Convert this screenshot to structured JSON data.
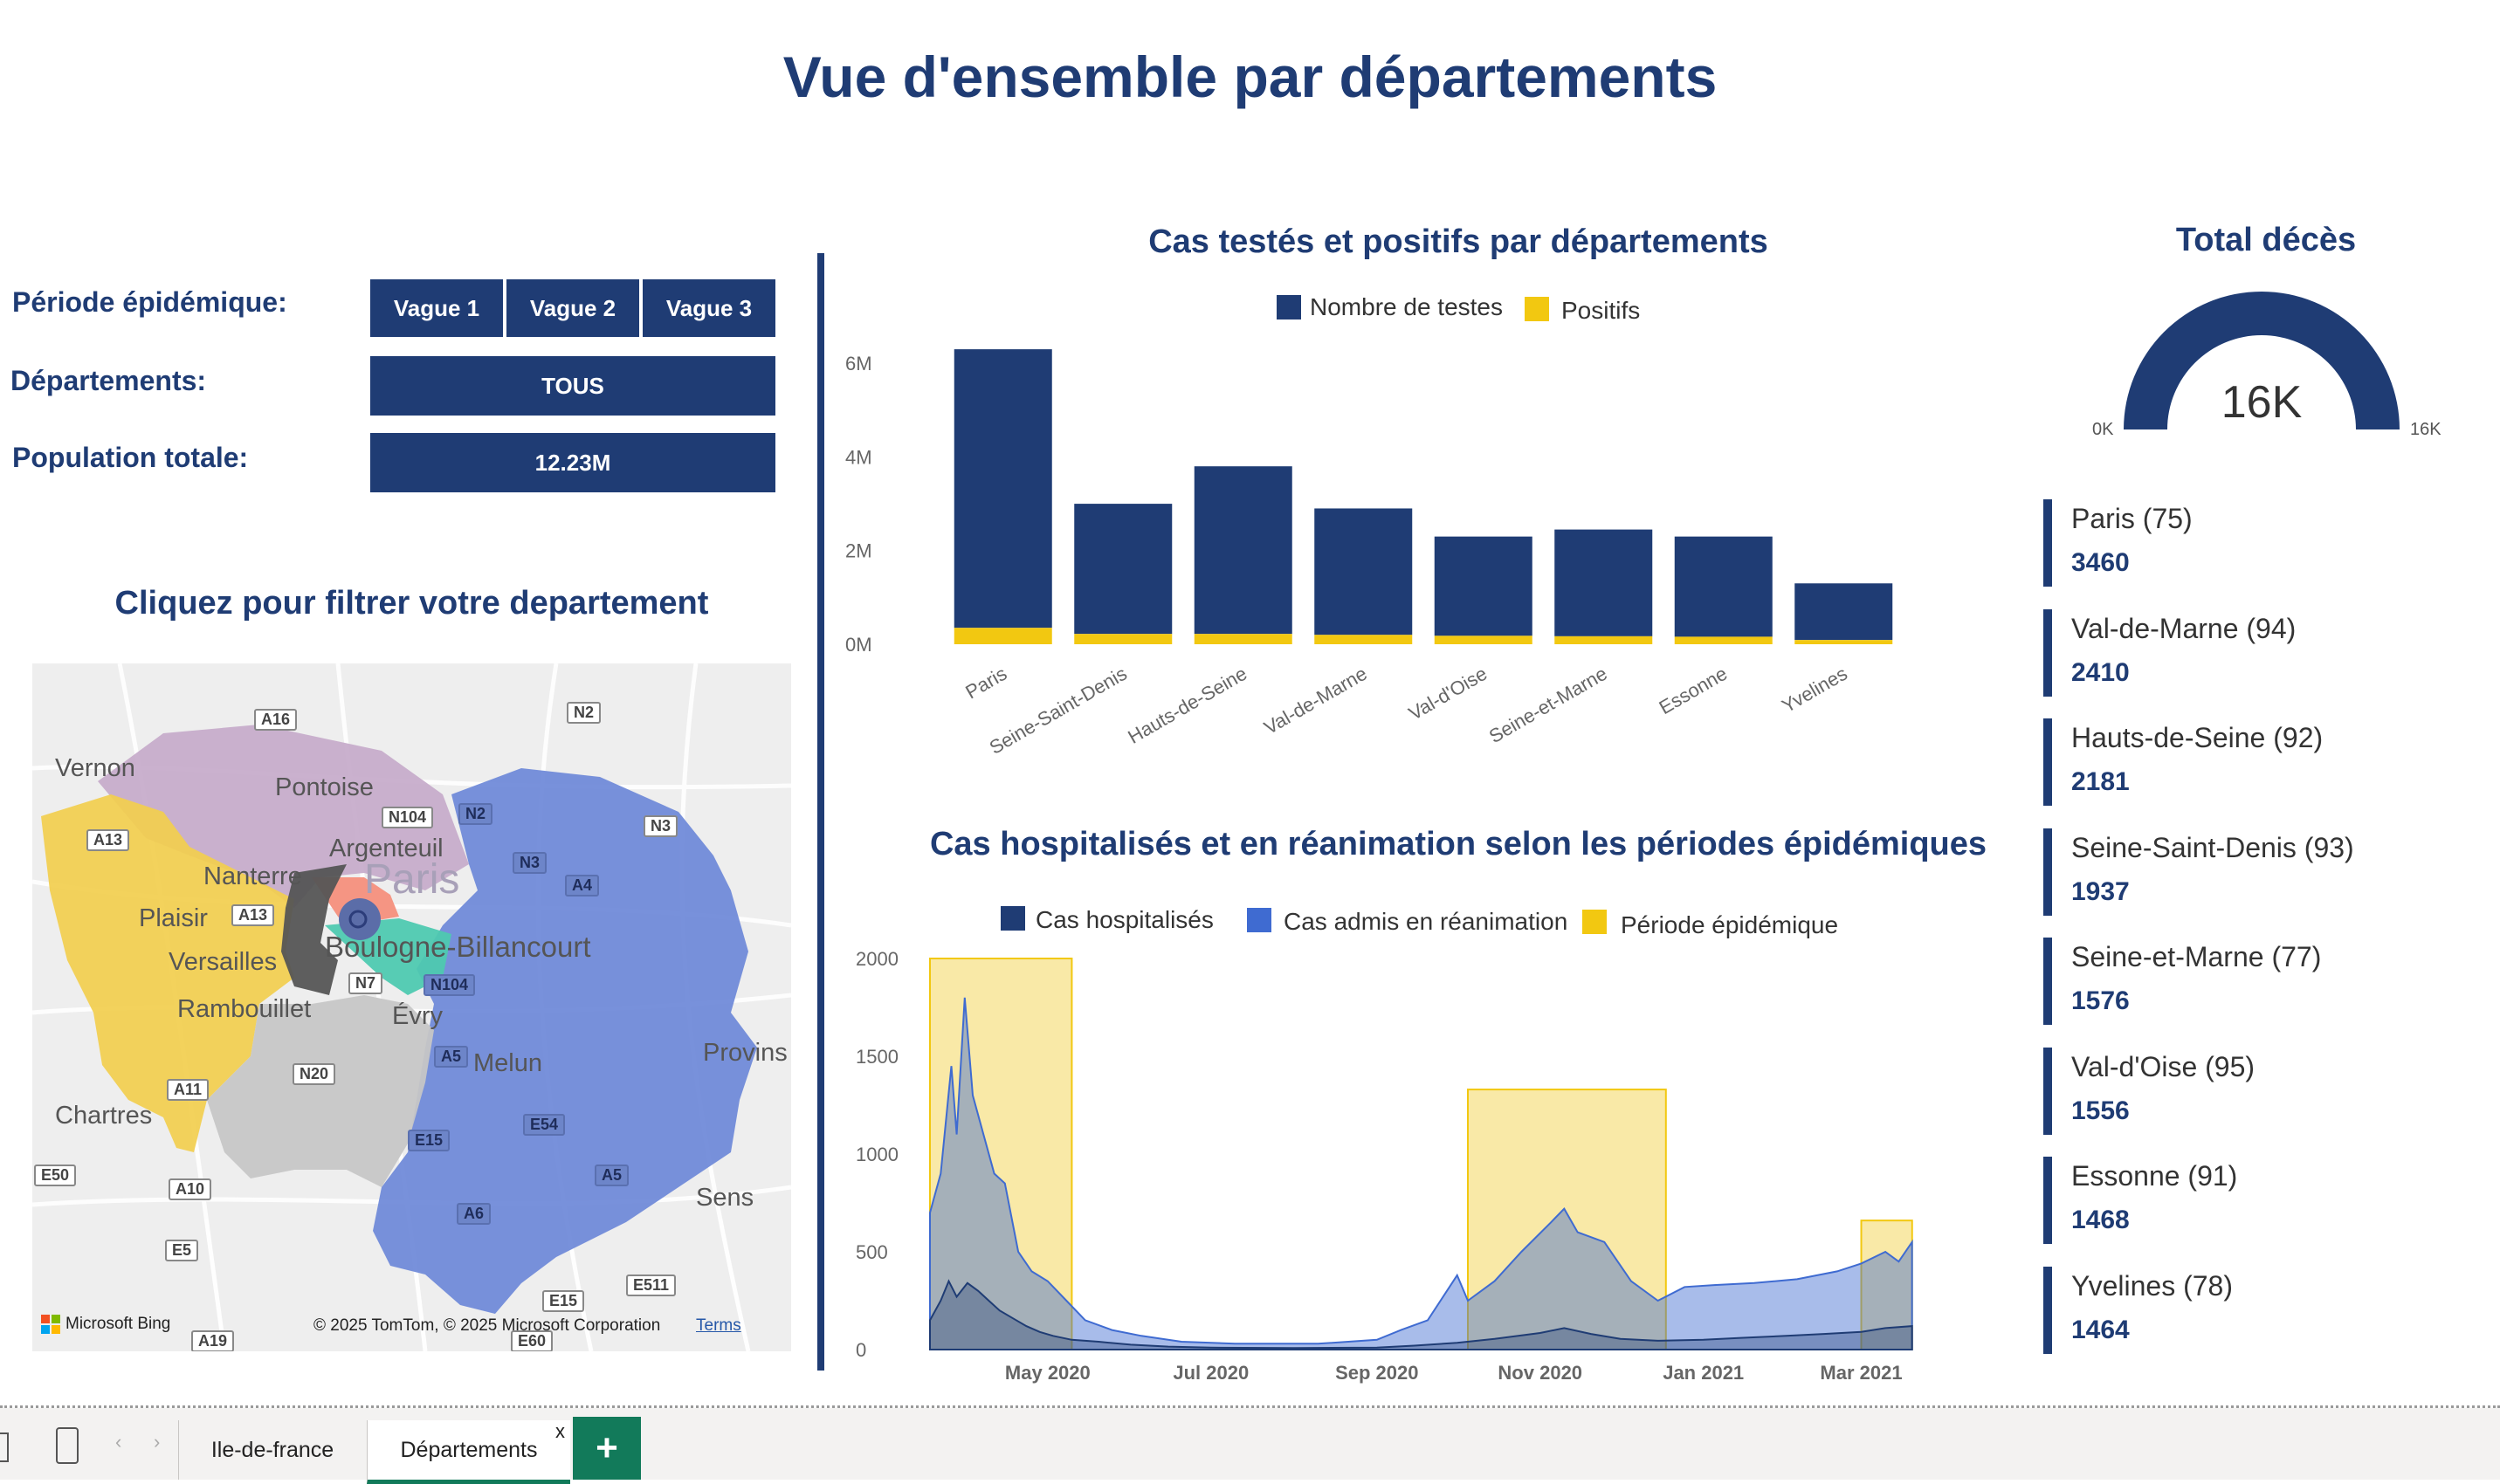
{
  "page": {
    "title": "Vue d'ensemble par départements"
  },
  "filters": {
    "period_label": "Période épidémique:",
    "departments_label": "Départements:",
    "population_label": "Population totale:",
    "waves": [
      "Vague 1",
      "Vague 2",
      "Vague 3"
    ],
    "department_value": "TOUS",
    "population_value": "12.23M"
  },
  "map": {
    "title": "Cliquez pour filtrer votre departement",
    "places": [
      "Vernon",
      "Pontoise",
      "Argenteuil",
      "Nanterre",
      "Paris",
      "Plaisir",
      "Versailles",
      "Boulogne-Billancourt",
      "Rambouillet",
      "Évry",
      "Melun",
      "Provins",
      "Chartres",
      "Sens"
    ],
    "roads": [
      "A16",
      "N2",
      "N104",
      "N2",
      "N3",
      "A13",
      "N3",
      "A4",
      "A13",
      "N7",
      "N104",
      "A5",
      "N20",
      "E54",
      "A11",
      "E15",
      "A5",
      "E50",
      "A10",
      "A6",
      "E5",
      "E511",
      "E15",
      "A19",
      "E60"
    ],
    "brand": "Microsoft Bing",
    "copyright": "© 2025 TomTom, © 2025 Microsoft Corporation",
    "terms": "Terms",
    "colors": {
      "Val-d'Oise": "#c4a9c9",
      "Yvelines": "#f2ce4e",
      "Essonne": "#c6c6c6",
      "Seine-et-Marne": "#6d88d8",
      "Hauts-de-Seine": "#555555",
      "Seine-Saint-Denis": "#f48f7c",
      "Val-de-Marne": "#4ec9b0",
      "Paris": "#5b6da8"
    }
  },
  "chart1": {
    "title": "Cas testés et positifs par départements",
    "legend": [
      "Nombre de testes",
      "Positifs"
    ]
  },
  "chart2": {
    "title": "Cas hospitalisés et en réanimation selon les périodes épidémiques",
    "legend": [
      "Cas hospitalisés",
      "Cas admis en réanimation",
      "Période épidémique"
    ]
  },
  "gauge": {
    "title": "Total décès",
    "value": "16K",
    "min": "0K",
    "max": "16K",
    "fraction": 1.0
  },
  "deaths": [
    {
      "name": "Paris (75)",
      "value": "3460"
    },
    {
      "name": "Val-de-Marne (94)",
      "value": "2410"
    },
    {
      "name": "Hauts-de-Seine (92)",
      "value": "2181"
    },
    {
      "name": "Seine-Saint-Denis (93)",
      "value": "1937"
    },
    {
      "name": "Seine-et-Marne (77)",
      "value": "1576"
    },
    {
      "name": "Val-d'Oise (95)",
      "value": "1556"
    },
    {
      "name": "Essonne (91)",
      "value": "1468"
    },
    {
      "name": "Yvelines (78)",
      "value": "1464"
    }
  ],
  "tabs": [
    "Ile-de-france",
    "Départements"
  ],
  "colors": {
    "primary": "#1f3c74",
    "positive": "#f2c811",
    "icu": "#3f6bd1",
    "period": "#f7e28a",
    "tab_accent": "#127a5a"
  },
  "chart_data": [
    {
      "type": "bar",
      "title": "Cas testés et positifs par départements",
      "categories": [
        "Paris",
        "Seine-Saint-Denis",
        "Hauts-de-Seine",
        "Val-de-Marne",
        "Val-d'Oise",
        "Seine-et-Marne",
        "Essonne",
        "Yvelines"
      ],
      "series": [
        {
          "name": "Nombre de testes",
          "values": [
            6.3,
            3.0,
            3.8,
            2.9,
            2.3,
            2.45,
            2.3,
            1.3
          ]
        },
        {
          "name": "Positifs",
          "values": [
            0.35,
            0.22,
            0.22,
            0.2,
            0.18,
            0.17,
            0.16,
            0.09
          ]
        }
      ],
      "yticks": [
        "0M",
        "2M",
        "4M",
        "6M"
      ],
      "ylim": [
        0,
        6.6
      ],
      "stacked": true,
      "legend": "top"
    },
    {
      "type": "area",
      "title": "Cas hospitalisés et en réanimation selon les périodes épidémiques",
      "x_ticks": [
        "May 2020",
        "Jul 2020",
        "Sep 2020",
        "Nov 2020",
        "Jan 2021",
        "Mar 2021"
      ],
      "yticks": [
        "0",
        "500",
        "1000",
        "1500",
        "2000"
      ],
      "ylim": [
        0,
        2000
      ],
      "periods": [
        {
          "name": "Vague 1",
          "start": "2020-03-18",
          "end": "2020-05-10",
          "level": 2000
        },
        {
          "name": "Vague 2",
          "start": "2020-10-05",
          "end": "2020-12-18",
          "level": 1330
        },
        {
          "name": "Vague 3",
          "start": "2021-03-01",
          "end": "2021-03-20",
          "level": 660
        }
      ],
      "series": [
        {
          "name": "Cas hospitalisés",
          "points": [
            [
              "2020-03-18",
              150
            ],
            [
              "2020-03-22",
              250
            ],
            [
              "2020-03-25",
              350
            ],
            [
              "2020-03-28",
              270
            ],
            [
              "2020-04-01",
              340
            ],
            [
              "2020-04-05",
              300
            ],
            [
              "2020-04-09",
              250
            ],
            [
              "2020-04-13",
              200
            ],
            [
              "2020-04-18",
              160
            ],
            [
              "2020-04-23",
              120
            ],
            [
              "2020-04-28",
              90
            ],
            [
              "2020-05-03",
              70
            ],
            [
              "2020-05-10",
              50
            ],
            [
              "2020-05-20",
              40
            ],
            [
              "2020-06-01",
              25
            ],
            [
              "2020-06-15",
              15
            ],
            [
              "2020-07-01",
              10
            ],
            [
              "2020-08-01",
              8
            ],
            [
              "2020-09-01",
              10
            ],
            [
              "2020-09-15",
              20
            ],
            [
              "2020-10-01",
              35
            ],
            [
              "2020-10-15",
              55
            ],
            [
              "2020-11-01",
              85
            ],
            [
              "2020-11-10",
              110
            ],
            [
              "2020-11-20",
              80
            ],
            [
              "2020-12-01",
              55
            ],
            [
              "2020-12-15",
              45
            ],
            [
              "2021-01-01",
              50
            ],
            [
              "2021-01-15",
              60
            ],
            [
              "2021-02-01",
              70
            ],
            [
              "2021-02-15",
              80
            ],
            [
              "2021-03-01",
              90
            ],
            [
              "2021-03-10",
              110
            ],
            [
              "2021-03-20",
              120
            ]
          ]
        },
        {
          "name": "Cas admis en réanimation",
          "points": [
            [
              "2020-03-18",
              700
            ],
            [
              "2020-03-22",
              900
            ],
            [
              "2020-03-26",
              1450
            ],
            [
              "2020-03-28",
              1100
            ],
            [
              "2020-03-31",
              1800
            ],
            [
              "2020-04-03",
              1300
            ],
            [
              "2020-04-07",
              1100
            ],
            [
              "2020-04-11",
              900
            ],
            [
              "2020-04-15",
              850
            ],
            [
              "2020-04-20",
              500
            ],
            [
              "2020-04-25",
              400
            ],
            [
              "2020-05-01",
              350
            ],
            [
              "2020-05-08",
              250
            ],
            [
              "2020-05-15",
              150
            ],
            [
              "2020-05-25",
              100
            ],
            [
              "2020-06-05",
              70
            ],
            [
              "2020-06-20",
              40
            ],
            [
              "2020-07-10",
              30
            ],
            [
              "2020-08-10",
              30
            ],
            [
              "2020-09-01",
              50
            ],
            [
              "2020-09-10",
              100
            ],
            [
              "2020-09-20",
              150
            ],
            [
              "2020-10-01",
              380
            ],
            [
              "2020-10-05",
              250
            ],
            [
              "2020-10-15",
              350
            ],
            [
              "2020-10-25",
              500
            ],
            [
              "2020-11-05",
              650
            ],
            [
              "2020-11-10",
              720
            ],
            [
              "2020-11-15",
              600
            ],
            [
              "2020-11-25",
              550
            ],
            [
              "2020-12-05",
              350
            ],
            [
              "2020-12-15",
              250
            ],
            [
              "2020-12-25",
              320
            ],
            [
              "2021-01-05",
              330
            ],
            [
              "2021-01-20",
              340
            ],
            [
              "2021-02-05",
              360
            ],
            [
              "2021-02-20",
              400
            ],
            [
              "2021-03-01",
              440
            ],
            [
              "2021-03-10",
              500
            ],
            [
              "2021-03-15",
              450
            ],
            [
              "2021-03-20",
              550
            ]
          ]
        }
      ],
      "legend": "top"
    }
  ]
}
